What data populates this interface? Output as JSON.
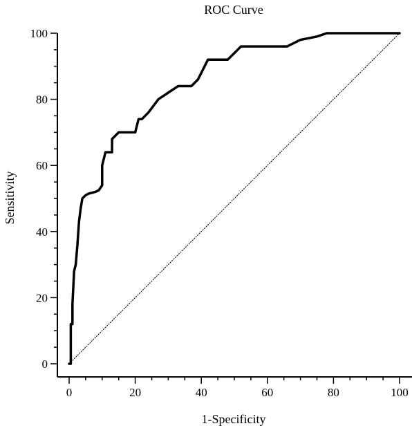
{
  "chart_data": {
    "type": "line",
    "title": "ROC Curve",
    "xlabel": "1-Specificity",
    "ylabel": "Sensitivity",
    "xlim": [
      0,
      100
    ],
    "ylim": [
      0,
      100
    ],
    "x_ticks": [
      "0",
      "20",
      "40",
      "60",
      "80",
      "100"
    ],
    "y_ticks": [
      "0",
      "20",
      "40",
      "60",
      "80",
      "100"
    ],
    "grid": false,
    "legend": "none",
    "series": [
      {
        "x": [
          0,
          0.5,
          0.5,
          1,
          1,
          1.5,
          2,
          2.5,
          3,
          3.5,
          4,
          5,
          6,
          8,
          9,
          10,
          10,
          11,
          12,
          13,
          13,
          15,
          16,
          18,
          20,
          21,
          22,
          24,
          27,
          30,
          33,
          37,
          39,
          40,
          42,
          44,
          48,
          50,
          52,
          55,
          60,
          66,
          70,
          75,
          78,
          83,
          90,
          100
        ],
        "y": [
          0,
          0,
          12,
          12,
          18,
          28,
          30,
          36,
          43,
          47,
          50,
          51,
          51.5,
          52,
          52.5,
          54,
          60,
          64,
          64,
          64,
          68,
          70,
          70,
          70,
          70,
          74,
          74,
          76,
          80,
          82,
          84,
          84,
          86,
          88,
          92,
          92,
          92,
          94,
          96,
          96,
          96,
          96,
          98,
          99,
          100,
          100,
          100,
          100
        ],
        "color": "#000000"
      },
      {
        "x": [
          0,
          100
        ],
        "y": [
          0,
          100
        ],
        "style": "dotted",
        "color": "#000000"
      }
    ]
  }
}
